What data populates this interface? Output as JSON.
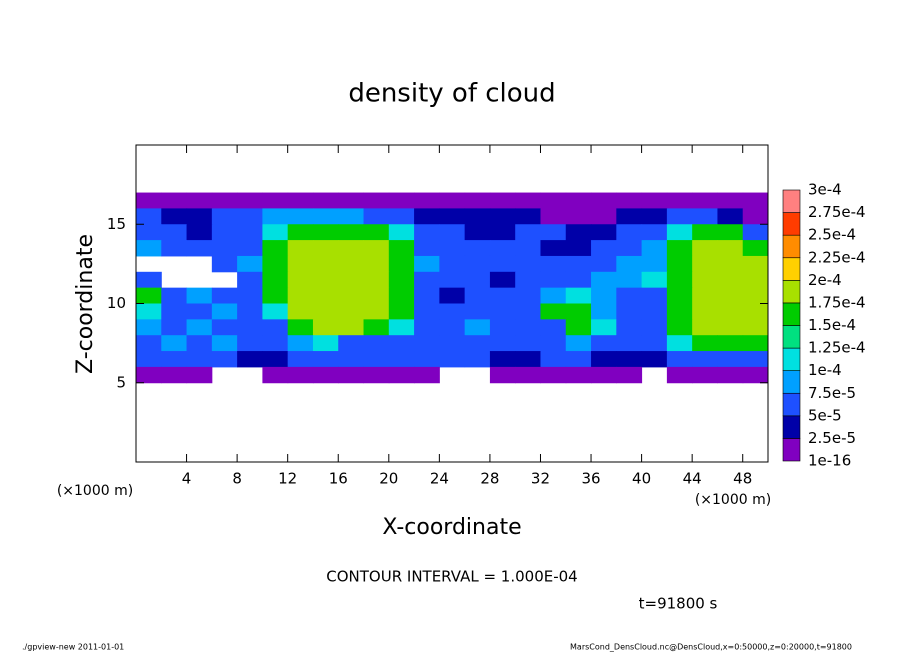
{
  "chart_data": {
    "type": "heatmap",
    "title": "density of cloud",
    "xlabel": "X-coordinate",
    "ylabel": "Z-coordinate",
    "xunit": "(×1000 m)",
    "yunit": "(×1000 m)",
    "annotation": "CONTOUR INTERVAL = 1.000E-04",
    "time_label": "t=91800 s",
    "footer_left": "./gpview-new   2011-01-01",
    "footer_right": "MarsCond_DensCloud.nc@DensCloud,x=0:50000,z=0:20000,t=91800",
    "xlim": [
      0,
      50
    ],
    "ylim": [
      0,
      20
    ],
    "xticks": [
      4,
      8,
      12,
      16,
      20,
      24,
      28,
      32,
      36,
      40,
      44,
      48
    ],
    "yticks": [
      5,
      10,
      15
    ],
    "x": [
      1,
      3,
      5,
      7,
      9,
      11,
      13,
      15,
      17,
      19,
      21,
      23,
      25,
      27,
      29,
      31,
      33,
      35,
      37,
      39,
      41,
      43,
      45,
      47,
      49
    ],
    "y": [
      16.5,
      15.5,
      14.5,
      13.5,
      12.5,
      11.5,
      10.5,
      9.5,
      8.5,
      7.5,
      6.5,
      5.5
    ],
    "z": [
      [
        5e-06,
        5e-06,
        5e-06,
        5e-06,
        5e-06,
        5e-06,
        5e-06,
        5e-06,
        5e-06,
        5e-06,
        5e-06,
        5e-06,
        5e-06,
        5e-06,
        5e-06,
        5e-06,
        5e-06,
        5e-06,
        5e-06,
        5e-06,
        5e-06,
        5e-06,
        5e-06,
        5e-06,
        5e-06
      ],
      [
        6e-05,
        3.5e-05,
        3.5e-05,
        6e-05,
        6e-05,
        8.5e-05,
        8.5e-05,
        8.5e-05,
        8.5e-05,
        6e-05,
        6e-05,
        3.5e-05,
        3.5e-05,
        3.5e-05,
        3.5e-05,
        3.5e-05,
        5e-06,
        5e-06,
        5e-06,
        3.5e-05,
        3.5e-05,
        6e-05,
        6e-05,
        3.5e-05,
        5e-06
      ],
      [
        6e-05,
        6e-05,
        3.5e-05,
        6e-05,
        6e-05,
        0.00011,
        0.00016,
        0.00016,
        0.00016,
        0.00016,
        0.00011,
        6e-05,
        6e-05,
        3.5e-05,
        3.5e-05,
        6e-05,
        6e-05,
        3.5e-05,
        3.5e-05,
        6e-05,
        6e-05,
        0.00011,
        0.00016,
        0.00016,
        6e-05
      ],
      [
        8.5e-05,
        6e-05,
        6e-05,
        6e-05,
        6e-05,
        0.00016,
        0.000185,
        0.000185,
        0.000185,
        0.000185,
        0.00016,
        6e-05,
        6e-05,
        6e-05,
        6e-05,
        6e-05,
        3.5e-05,
        3.5e-05,
        6e-05,
        6e-05,
        8.5e-05,
        0.00016,
        0.000185,
        0.000185,
        0.00016
      ],
      [
        null,
        null,
        null,
        6e-05,
        8.5e-05,
        0.00016,
        0.000185,
        0.000185,
        0.000185,
        0.000185,
        0.00016,
        8.5e-05,
        6e-05,
        6e-05,
        6e-05,
        6e-05,
        6e-05,
        6e-05,
        6e-05,
        8.5e-05,
        8.5e-05,
        0.00016,
        0.000185,
        0.000185,
        0.000185
      ],
      [
        6e-05,
        null,
        null,
        null,
        6e-05,
        0.00016,
        0.000185,
        0.000185,
        0.000185,
        0.000185,
        0.00016,
        6e-05,
        6e-05,
        6e-05,
        3.5e-05,
        6e-05,
        6e-05,
        6e-05,
        8.5e-05,
        8.5e-05,
        0.00011,
        0.00016,
        0.000185,
        0.000185,
        0.000185
      ],
      [
        0.00016,
        6e-05,
        8.5e-05,
        6e-05,
        6e-05,
        0.00016,
        0.000185,
        0.000185,
        0.000185,
        0.000185,
        0.00016,
        6e-05,
        3.5e-05,
        6e-05,
        6e-05,
        6e-05,
        8.5e-05,
        0.00011,
        8.5e-05,
        6e-05,
        6e-05,
        0.00016,
        0.000185,
        0.000185,
        0.000185
      ],
      [
        0.00011,
        6e-05,
        6e-05,
        8.5e-05,
        6e-05,
        0.00011,
        0.000185,
        0.000185,
        0.000185,
        0.000185,
        0.00016,
        6e-05,
        6e-05,
        6e-05,
        6e-05,
        6e-05,
        0.00016,
        0.00016,
        8.5e-05,
        6e-05,
        6e-05,
        0.00016,
        0.000185,
        0.000185,
        0.000185
      ],
      [
        8.5e-05,
        6e-05,
        8.5e-05,
        6e-05,
        6e-05,
        6e-05,
        0.00016,
        0.000185,
        0.000185,
        0.00016,
        0.00011,
        6e-05,
        6e-05,
        8.5e-05,
        6e-05,
        6e-05,
        6e-05,
        0.00016,
        0.00011,
        6e-05,
        6e-05,
        0.00016,
        0.000185,
        0.000185,
        0.000185
      ],
      [
        6e-05,
        8.5e-05,
        6e-05,
        8.5e-05,
        6e-05,
        6e-05,
        8.5e-05,
        0.00011,
        6e-05,
        6e-05,
        6e-05,
        6e-05,
        6e-05,
        6e-05,
        6e-05,
        6e-05,
        6e-05,
        8.5e-05,
        6e-05,
        6e-05,
        6e-05,
        0.00011,
        0.00016,
        0.00016,
        0.00016
      ],
      [
        6e-05,
        6e-05,
        6e-05,
        6e-05,
        3.5e-05,
        3.5e-05,
        6e-05,
        6e-05,
        6e-05,
        6e-05,
        6e-05,
        6e-05,
        6e-05,
        6e-05,
        3.5e-05,
        3.5e-05,
        6e-05,
        6e-05,
        3.5e-05,
        3.5e-05,
        3.5e-05,
        6e-05,
        6e-05,
        6e-05,
        6e-05
      ],
      [
        5e-06,
        5e-06,
        5e-06,
        null,
        null,
        5e-06,
        5e-06,
        5e-06,
        5e-06,
        5e-06,
        5e-06,
        5e-06,
        null,
        null,
        5e-06,
        5e-06,
        5e-06,
        5e-06,
        5e-06,
        5e-06,
        null,
        5e-06,
        5e-06,
        5e-06,
        5e-06
      ]
    ],
    "colorbar": {
      "levels": [
        {
          "value": 1e-16,
          "label": "1e-16"
        },
        {
          "value": 2.5e-05,
          "label": "2.5e-5"
        },
        {
          "value": 5e-05,
          "label": "5e-5"
        },
        {
          "value": 7.5e-05,
          "label": "7.5e-5"
        },
        {
          "value": 0.0001,
          "label": "1e-4"
        },
        {
          "value": 0.000125,
          "label": "1.25e-4"
        },
        {
          "value": 0.00015,
          "label": "1.5e-4"
        },
        {
          "value": 0.000175,
          "label": "1.75e-4"
        },
        {
          "value": 0.0002,
          "label": "2e-4"
        },
        {
          "value": 0.000225,
          "label": "2.25e-4"
        },
        {
          "value": 0.00025,
          "label": "2.5e-4"
        },
        {
          "value": 0.000275,
          "label": "2.75e-4"
        },
        {
          "value": 0.0003,
          "label": "3e-4"
        }
      ],
      "colors": [
        "#8000c0",
        "#0000a8",
        "#1e50ff",
        "#00a0ff",
        "#00e0e0",
        "#00e080",
        "#00cc00",
        "#a8e000",
        "#ffd000",
        "#ff8c00",
        "#ff3c00",
        "#ff8080"
      ]
    }
  }
}
